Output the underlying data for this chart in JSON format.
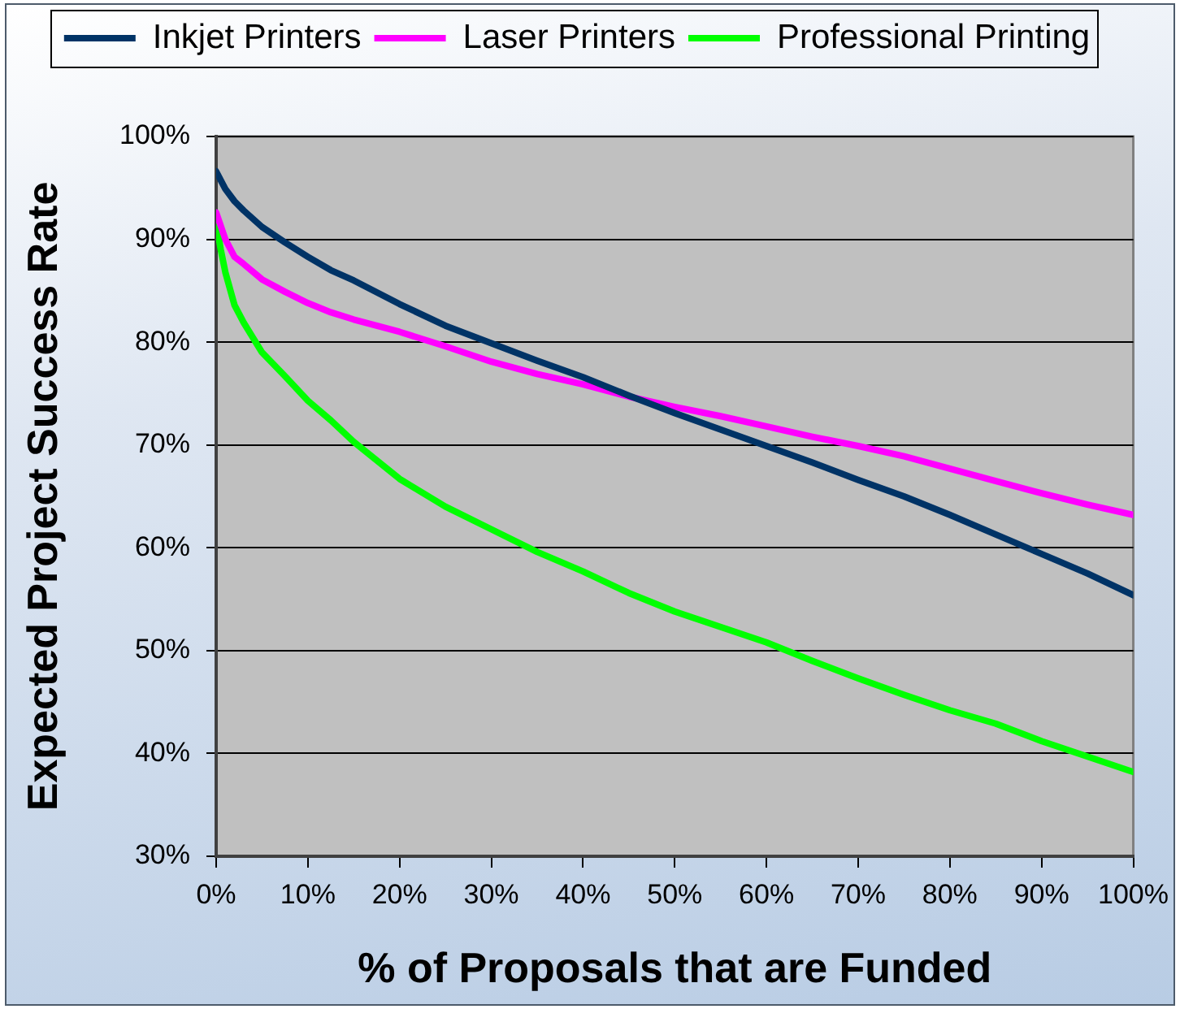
{
  "chart_data": {
    "type": "line",
    "xlabel": "% of Proposals that are Funded",
    "ylabel": "Expected Project Success Rate",
    "xlim": [
      0,
      100
    ],
    "xticks": [
      {
        "value": 0,
        "label": "0%"
      },
      {
        "value": 10,
        "label": "10%"
      },
      {
        "value": 20,
        "label": "20%"
      },
      {
        "value": 30,
        "label": "30%"
      },
      {
        "value": 40,
        "label": "40%"
      },
      {
        "value": 50,
        "label": "50%"
      },
      {
        "value": 60,
        "label": "60%"
      },
      {
        "value": 70,
        "label": "70%"
      },
      {
        "value": 80,
        "label": "80%"
      },
      {
        "value": 90,
        "label": "90%"
      },
      {
        "value": 100,
        "label": "100%"
      }
    ],
    "ylim": [
      30,
      100
    ],
    "yticks": [
      {
        "value": 30,
        "label": "30%"
      },
      {
        "value": 40,
        "label": "40%"
      },
      {
        "value": 50,
        "label": "50%"
      },
      {
        "value": 60,
        "label": "60%"
      },
      {
        "value": 70,
        "label": "70%"
      },
      {
        "value": 80,
        "label": "80%"
      },
      {
        "value": 90,
        "label": "90%"
      },
      {
        "value": 100,
        "label": "100%"
      }
    ],
    "grid": "y",
    "legend": "top",
    "series": [
      {
        "name": "Inkjet Printers",
        "color": "#003366",
        "x": [
          0,
          1,
          2,
          3,
          5,
          7.5,
          10,
          12.5,
          15,
          20,
          25,
          30,
          35,
          40,
          45,
          50,
          55,
          60,
          65,
          70,
          75,
          80,
          85,
          90,
          95,
          100
        ],
        "values": [
          96.6,
          94.9,
          93.7,
          92.8,
          91.2,
          89.7,
          88.3,
          87.0,
          86.0,
          83.7,
          81.6,
          79.9,
          78.2,
          76.6,
          74.8,
          73.1,
          71.5,
          69.9,
          68.3,
          66.6,
          65.0,
          63.2,
          61.3,
          59.4,
          57.5,
          55.4
        ]
      },
      {
        "name": "Laser Printers",
        "color": "#ff00ff",
        "x": [
          0,
          1,
          2,
          3,
          5,
          7.5,
          10,
          12.5,
          15,
          20,
          25,
          30,
          35,
          40,
          45,
          50,
          55,
          60,
          65,
          70,
          75,
          80,
          85,
          90,
          95,
          100
        ],
        "values": [
          92.6,
          90.0,
          88.3,
          87.6,
          86.1,
          84.9,
          83.8,
          82.9,
          82.2,
          81.0,
          79.6,
          78.1,
          76.9,
          75.9,
          74.7,
          73.7,
          72.8,
          71.8,
          70.8,
          69.9,
          68.9,
          67.7,
          66.5,
          65.3,
          64.2,
          63.2
        ]
      },
      {
        "name": "Professional Printing",
        "color": "#00ff00",
        "x": [
          0,
          0.5,
          1,
          2,
          3,
          5,
          7.5,
          10,
          12.5,
          15,
          20,
          25,
          30,
          35,
          40,
          45,
          50,
          55,
          60,
          65,
          70,
          75,
          80,
          85,
          90,
          95,
          100
        ],
        "values": [
          91.6,
          89.0,
          86.8,
          83.6,
          81.9,
          79.0,
          76.7,
          74.3,
          72.4,
          70.3,
          66.7,
          64.0,
          61.8,
          59.6,
          57.7,
          55.6,
          53.8,
          52.3,
          50.8,
          49.0,
          47.3,
          45.7,
          44.2,
          42.9,
          41.2,
          39.7,
          38.2
        ]
      }
    ]
  }
}
